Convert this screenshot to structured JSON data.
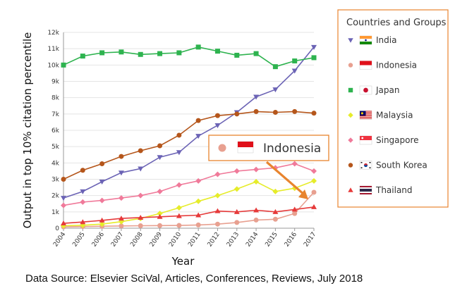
{
  "chart_data": {
    "type": "line",
    "title": "",
    "xlabel": "Year",
    "ylabel": "Output in top 10% citation percentile",
    "categories": [
      "2004",
      "2005",
      "2006",
      "2007",
      "2008",
      "2009",
      "2010",
      "2011",
      "2012",
      "2013",
      "2014",
      "2015",
      "2016",
      "2017"
    ],
    "yticks": [
      "0",
      "1k",
      "2k",
      "3k",
      "4k",
      "5k",
      "6k",
      "7k",
      "8k",
      "9k",
      "10k",
      "11k",
      "12k"
    ],
    "ylim": [
      0,
      12000
    ],
    "legend_title": "Countries and Groups",
    "series": [
      {
        "name": "India",
        "color": "#6b63b5",
        "marker": "triangle-down",
        "flag": "india",
        "values": [
          1850,
          2250,
          2850,
          3400,
          3650,
          4350,
          4650,
          5650,
          6300,
          7100,
          8050,
          8500,
          9650,
          11100
        ]
      },
      {
        "name": "Indonesia",
        "color": "#e8a090",
        "marker": "circle",
        "flag": "indonesia",
        "values": [
          80,
          100,
          120,
          140,
          150,
          160,
          170,
          200,
          250,
          350,
          500,
          550,
          900,
          2200
        ]
      },
      {
        "name": "Japan",
        "color": "#2eb34f",
        "marker": "square",
        "flag": "japan",
        "values": [
          10000,
          10550,
          10750,
          10800,
          10650,
          10700,
          10750,
          11100,
          10850,
          10600,
          10700,
          9900,
          10250,
          10450
        ]
      },
      {
        "name": "Malaysia",
        "color": "#e6ec2a",
        "marker": "diamond",
        "flag": "malaysia",
        "values": [
          150,
          180,
          250,
          400,
          600,
          900,
          1250,
          1650,
          2000,
          2400,
          2850,
          2250,
          2450,
          2900
        ]
      },
      {
        "name": "Singapore",
        "color": "#f07a9a",
        "marker": "diamond",
        "flag": "singapore",
        "values": [
          1400,
          1600,
          1700,
          1850,
          2000,
          2250,
          2650,
          2900,
          3300,
          3500,
          3600,
          3700,
          3950,
          3500
        ]
      },
      {
        "name": "South Korea",
        "color": "#b5561b",
        "marker": "circle",
        "flag": "south-korea",
        "values": [
          3000,
          3550,
          3950,
          4400,
          4750,
          5050,
          5700,
          6600,
          6900,
          7000,
          7150,
          7100,
          7150,
          7050
        ]
      },
      {
        "name": "Thailand",
        "color": "#e63a3a",
        "marker": "triangle-up",
        "flag": "thailand",
        "values": [
          300,
          380,
          480,
          600,
          650,
          700,
          750,
          800,
          1050,
          1000,
          1100,
          1000,
          1150,
          1300
        ]
      }
    ],
    "callout": {
      "label": "Indonesia",
      "series": "Indonesia",
      "color": "#e8842e"
    }
  },
  "source_text": "Data Source: Elsevier SciVal, Articles, Conferences, Reviews, July 2018"
}
